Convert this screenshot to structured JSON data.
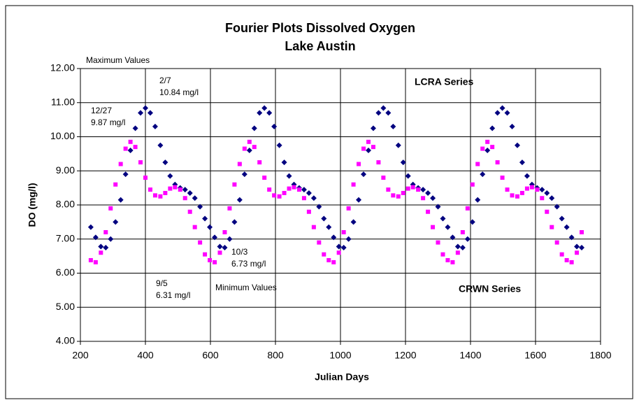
{
  "chart_data": {
    "type": "scatter",
    "title": "Fourier Plots Dissolved Oxygen",
    "subtitle": "Lake Austin",
    "x_label": "Julian Days",
    "y_label": "DO (mg/l)",
    "xlim": [
      200,
      1800
    ],
    "xticks": [
      200,
      400,
      600,
      800,
      1000,
      1200,
      1400,
      1600,
      1800
    ],
    "ylim": [
      4,
      12
    ],
    "yticks": [
      {
        "value": 4,
        "label": "4.00"
      },
      {
        "value": 5,
        "label": "5.00"
      },
      {
        "value": 6,
        "label": "6.00"
      },
      {
        "value": 7,
        "label": "7.00"
      },
      {
        "value": 8,
        "label": "8.00"
      },
      {
        "value": 9,
        "label": "9.00"
      },
      {
        "value": 10,
        "label": "10.00"
      },
      {
        "value": 11,
        "label": "11.00"
      },
      {
        "value": 12,
        "label": "12.00"
      }
    ],
    "grid": true,
    "x": [
      232,
      247,
      263,
      278,
      293,
      308,
      324,
      339,
      354,
      369,
      385,
      400,
      415,
      430,
      446,
      461,
      476,
      491,
      507,
      522,
      537,
      552,
      568,
      583,
      598,
      613,
      629,
      644,
      659,
      674,
      690,
      705,
      720,
      735,
      751,
      766,
      781,
      796,
      812,
      827,
      842,
      857,
      873,
      888,
      903,
      918,
      934,
      949,
      964,
      979,
      995,
      1010,
      1025,
      1040,
      1056,
      1071,
      1086,
      1101,
      1117,
      1132,
      1147,
      1162,
      1178,
      1193,
      1208,
      1223,
      1239,
      1254,
      1269,
      1284,
      1300,
      1315,
      1330,
      1345,
      1361,
      1376,
      1391,
      1406,
      1422,
      1437,
      1452,
      1467,
      1483,
      1498,
      1513,
      1528,
      1544,
      1559,
      1574,
      1589,
      1605,
      1620,
      1635,
      1650,
      1666,
      1681,
      1696,
      1711,
      1727,
      1742
    ],
    "series": [
      {
        "name": "LCRA Series",
        "color": "#000080",
        "marker": "diamond",
        "values": [
          7.35,
          7.05,
          6.78,
          6.75,
          7.0,
          7.5,
          8.15,
          8.9,
          9.6,
          10.25,
          10.7,
          10.84,
          10.7,
          10.3,
          9.75,
          9.25,
          8.85,
          8.6,
          8.5,
          8.45,
          8.35,
          8.2,
          7.95,
          7.6,
          7.35,
          7.05,
          6.78,
          6.75,
          7.0,
          7.5,
          8.15,
          8.9,
          9.6,
          10.25,
          10.7,
          10.84,
          10.7,
          10.3,
          9.75,
          9.25,
          8.85,
          8.6,
          8.5,
          8.45,
          8.35,
          8.2,
          7.95,
          7.6,
          7.35,
          7.05,
          6.78,
          6.75,
          7.0,
          7.5,
          8.15,
          8.9,
          9.6,
          10.25,
          10.7,
          10.84,
          10.7,
          10.3,
          9.75,
          9.25,
          8.85,
          8.6,
          8.5,
          8.45,
          8.35,
          8.2,
          7.95,
          7.6,
          7.35,
          7.05,
          6.78,
          6.75,
          7.0,
          7.5,
          8.15,
          8.9,
          9.6,
          10.25,
          10.7,
          10.84,
          10.7,
          10.3,
          9.75,
          9.25,
          8.85,
          8.6,
          8.5,
          8.45,
          8.35,
          8.2,
          7.95,
          7.6,
          7.35,
          7.05,
          6.78,
          6.75
        ]
      },
      {
        "name": "CRWN Series",
        "color": "#ff00ff",
        "marker": "square",
        "values": [
          6.38,
          6.32,
          6.6,
          7.2,
          7.9,
          8.6,
          9.2,
          9.65,
          9.85,
          9.7,
          9.25,
          8.8,
          8.45,
          8.28,
          8.25,
          8.35,
          8.48,
          8.52,
          8.45,
          8.2,
          7.8,
          7.35,
          6.9,
          6.55,
          6.38,
          6.32,
          6.6,
          7.2,
          7.9,
          8.6,
          9.2,
          9.65,
          9.85,
          9.7,
          9.25,
          8.8,
          8.45,
          8.28,
          8.25,
          8.35,
          8.48,
          8.52,
          8.45,
          8.2,
          7.8,
          7.35,
          6.9,
          6.55,
          6.38,
          6.32,
          6.6,
          7.2,
          7.9,
          8.6,
          9.2,
          9.65,
          9.85,
          9.7,
          9.25,
          8.8,
          8.45,
          8.28,
          8.25,
          8.35,
          8.48,
          8.52,
          8.45,
          8.2,
          7.8,
          7.35,
          6.9,
          6.55,
          6.38,
          6.32,
          6.6,
          7.2,
          7.9,
          8.6,
          9.2,
          9.65,
          9.85,
          9.7,
          9.25,
          8.8,
          8.45,
          8.28,
          8.25,
          8.35,
          8.48,
          8.52,
          8.45,
          8.2,
          7.8,
          7.35,
          6.9,
          6.55,
          6.38,
          6.32,
          6.6,
          7.2
        ]
      }
    ],
    "annotations": [
      "Maximum Values",
      "2/7",
      "10.84 mg/l",
      "12/27",
      "9.87 mg/l",
      "10/3",
      "6.73 mg/l",
      "9/5",
      "6.31 mg/l",
      "Minimum Values"
    ]
  }
}
